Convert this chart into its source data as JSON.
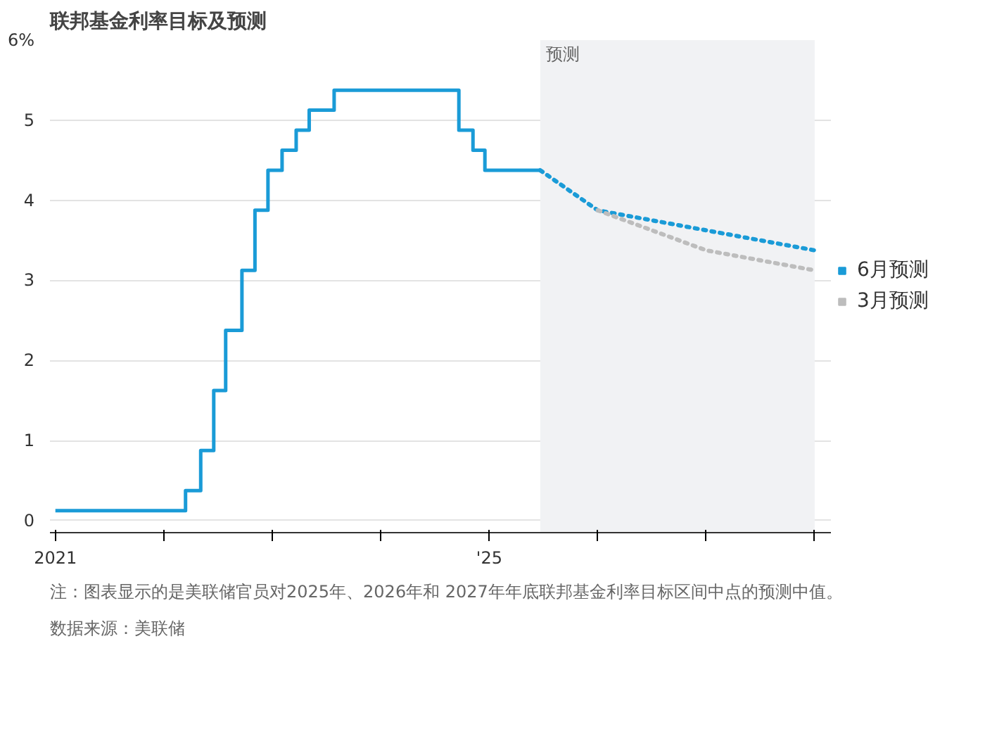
{
  "chart_data": {
    "type": "line",
    "title": "联邦基金利率目标及预测",
    "annotations": [
      "注：图表显示的是美联储官员对2025年、2026年和 2027年年底联邦基金利率目标区间中点的预测中值。",
      "数据来源：美联储"
    ],
    "series": [
      {
        "type": "step",
        "color": "#1a9bd7",
        "x": [
          2021.0,
          2022.2,
          2022.34,
          2022.46,
          2022.57,
          2022.72,
          2022.84,
          2022.96,
          2023.09,
          2023.22,
          2023.34,
          2023.57,
          2024.72,
          2024.85,
          2024.96,
          2025.47
        ],
        "values": [
          0.125,
          0.375,
          0.875,
          1.625,
          2.375,
          3.125,
          3.875,
          4.375,
          4.625,
          4.875,
          5.125,
          5.375,
          4.875,
          4.625,
          4.375,
          4.375
        ]
      },
      {
        "name": "6月预测",
        "type": "line",
        "line_style": "dotted",
        "color": "#1a9bd7",
        "x": [
          2025.47,
          2026.0,
          2027.0,
          2028.0
        ],
        "values": [
          4.375,
          3.875,
          3.625,
          3.375
        ]
      },
      {
        "name": "3月预测",
        "type": "line",
        "line_style": "dotted",
        "color": "#bdbdbd",
        "x": [
          2026.0,
          2027.0,
          2028.0
        ],
        "values": [
          3.875,
          3.375,
          3.125
        ]
      }
    ],
    "xlim": [
      2020.95,
      2028.15
    ],
    "xticks": [
      {
        "value": 2021,
        "label": "2021"
      },
      {
        "value": 2022,
        "label": null
      },
      {
        "value": 2023,
        "label": null
      },
      {
        "value": 2024,
        "label": null
      },
      {
        "value": 2025,
        "label": "'25"
      },
      {
        "value": 2026,
        "label": null
      },
      {
        "value": 2027,
        "label": null
      },
      {
        "value": 2028,
        "label": null
      }
    ],
    "ylim": [
      -0.15,
      6
    ],
    "yticks": [
      0,
      1,
      2,
      3,
      4,
      5,
      {
        "value": 6,
        "label": "6%"
      }
    ],
    "grid": "y",
    "legend": "right",
    "bands": [
      {
        "axis": "x",
        "from": 2025.47,
        "to": 2028.0,
        "label": "预测",
        "color": "#f1f2f4"
      }
    ]
  }
}
